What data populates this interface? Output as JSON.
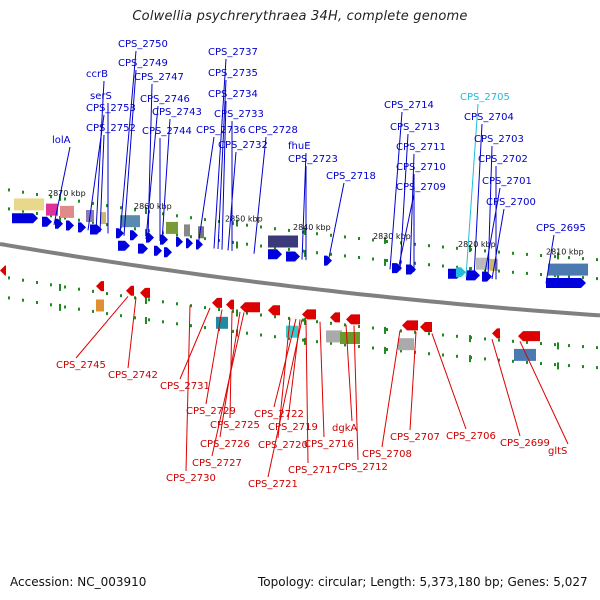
{
  "title": "Colwellia psychrerythraea 34H, complete genome",
  "footer": {
    "accession": "Accession: NC_003910",
    "summary": "Topology: circular; Length: 5,373,180 bp; Genes: 5,027"
  },
  "colors": {
    "forward": "#0000dd",
    "reverse": "#dd0000",
    "highlight": "#22bbdd",
    "tick": "#228822",
    "backbone": "#808080"
  },
  "kbp_labels": [
    "2870 kbp",
    "2860 kbp",
    "2850 kbp",
    "2840 kbp",
    "2830 kbp",
    "2820 kbp",
    "2810 kbp"
  ],
  "top_labels": [
    {
      "text": "CPS_2750",
      "color": "#0000cc"
    },
    {
      "text": "CPS_2749",
      "color": "#0000cc"
    },
    {
      "text": "ccrB",
      "color": "#0000cc"
    },
    {
      "text": "CPS_2747",
      "color": "#0000cc"
    },
    {
      "text": "serS",
      "color": "#0000cc"
    },
    {
      "text": "CPS_2753",
      "color": "#0000cc"
    },
    {
      "text": "CPS_2746",
      "color": "#0000cc"
    },
    {
      "text": "CPS_2743",
      "color": "#0000cc"
    },
    {
      "text": "CPS_2752",
      "color": "#0000cc"
    },
    {
      "text": "CPS_2744",
      "color": "#0000cc"
    },
    {
      "text": "lolA",
      "color": "#0000cc"
    },
    {
      "text": "CPS_2737",
      "color": "#0000cc"
    },
    {
      "text": "CPS_2735",
      "color": "#0000cc"
    },
    {
      "text": "CPS_2734",
      "color": "#0000cc"
    },
    {
      "text": "CPS_2733",
      "color": "#0000cc"
    },
    {
      "text": "CPS_2736",
      "color": "#0000cc"
    },
    {
      "text": "CPS_2728",
      "color": "#0000cc"
    },
    {
      "text": "CPS_2732",
      "color": "#0000cc"
    },
    {
      "text": "fhuE",
      "color": "#0000cc"
    },
    {
      "text": "CPS_2723",
      "color": "#0000cc"
    },
    {
      "text": "CPS_2718",
      "color": "#0000cc"
    },
    {
      "text": "CPS_2714",
      "color": "#0000cc"
    },
    {
      "text": "CPS_2713",
      "color": "#0000cc"
    },
    {
      "text": "CPS_2711",
      "color": "#0000cc"
    },
    {
      "text": "CPS_2710",
      "color": "#0000cc"
    },
    {
      "text": "CPS_2709",
      "color": "#0000cc"
    },
    {
      "text": "CPS_2705",
      "color": "#22bbdd"
    },
    {
      "text": "CPS_2704",
      "color": "#0000cc"
    },
    {
      "text": "CPS_2703",
      "color": "#0000cc"
    },
    {
      "text": "CPS_2702",
      "color": "#0000cc"
    },
    {
      "text": "CPS_2701",
      "color": "#0000cc"
    },
    {
      "text": "CPS_2700",
      "color": "#0000cc"
    },
    {
      "text": "CPS_2695",
      "color": "#0000cc"
    }
  ],
  "bottom_labels": [
    "CPS_2745",
    "CPS_2742",
    "CPS_2731",
    "CPS_2729",
    "CPS_2725",
    "CPS_2726",
    "CPS_2727",
    "CPS_2730",
    "CPS_2722",
    "CPS_2719",
    "CPS_2720",
    "CPS_2721",
    "CPS_2716",
    "dgkA",
    "CPS_2717",
    "CPS_2712",
    "CPS_2707",
    "CPS_2708",
    "CPS_2706",
    "CPS_2699",
    "gltS"
  ]
}
